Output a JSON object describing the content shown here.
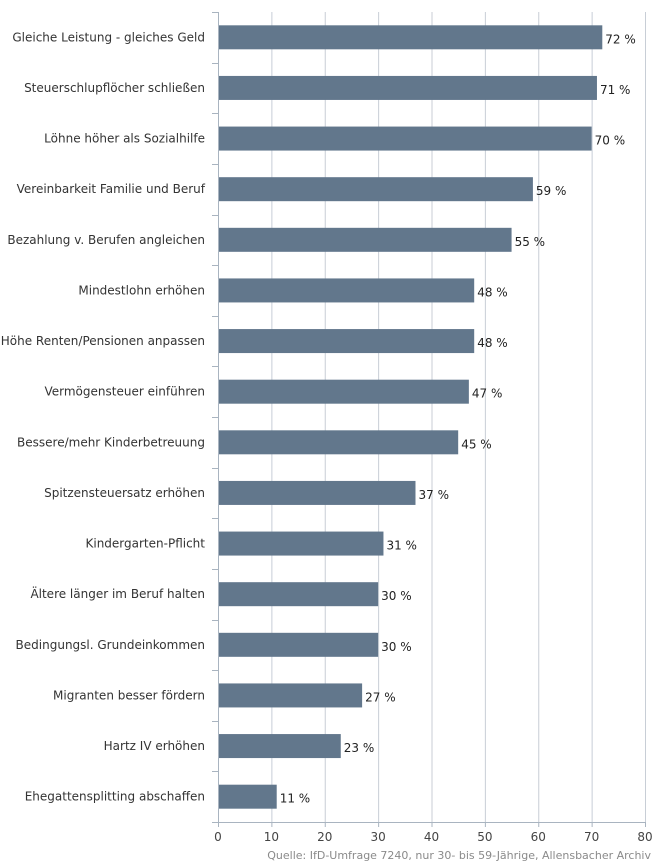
{
  "chart_data": {
    "type": "bar",
    "orientation": "horizontal",
    "categories": [
      "Gleiche Leistung - gleiches Geld",
      "Steuerschlupflöcher schließen",
      "Löhne höher als Sozialhilfe",
      "Vereinbarkeit Familie und Beruf",
      "Bezahlung v. Berufen angleichen",
      "Mindestlohn erhöhen",
      "Höhe Renten/Pensionen anpassen",
      "Vermögensteuer einführen",
      "Bessere/mehr Kinderbetreuung",
      "Spitzensteuersatz erhöhen",
      "Kindergarten-Pflicht",
      "Ältere länger im Beruf halten",
      "Bedingungsl. Grundeinkommen",
      "Migranten besser fördern",
      "Hartz IV erhöhen",
      "Ehegattensplitting abschaffen"
    ],
    "values": [
      72,
      71,
      70,
      59,
      55,
      48,
      48,
      47,
      45,
      37,
      31,
      30,
      30,
      27,
      23,
      11
    ],
    "value_labels": [
      "72 %",
      "71 %",
      "70 %",
      "59 %",
      "55 %",
      "48 %",
      "48 %",
      "47 %",
      "45 %",
      "37 %",
      "31 %",
      "30 %",
      "30 %",
      "27 %",
      "23 %",
      "11 %"
    ],
    "xlim": [
      0,
      80
    ],
    "xticks": [
      0,
      10,
      20,
      30,
      40,
      50,
      60,
      70,
      80
    ],
    "xtick_labels": [
      "0",
      "10",
      "20",
      "30",
      "40",
      "50",
      "60",
      "70",
      "80"
    ],
    "grid": true,
    "bar_color": "#62778c",
    "grid_color": "#c8ced6",
    "source": "Quelle: IfD-Umfrage 7240, nur 30- bis 59-Jährige, Allensbacher Archiv"
  }
}
